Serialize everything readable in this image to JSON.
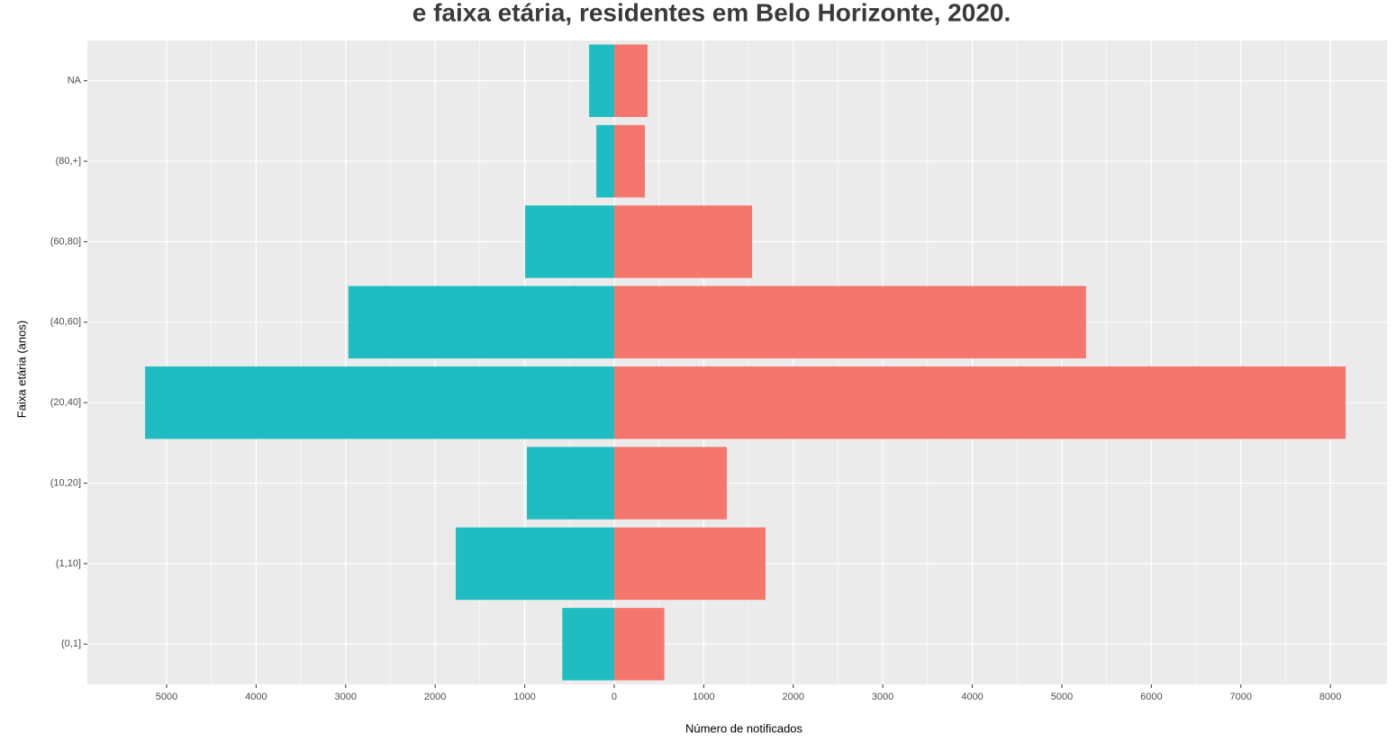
{
  "chart_data": {
    "type": "pyramid",
    "title": "e faixa etária, residentes em Belo Horizonte, 2020.",
    "xlabel": "Número de notificados",
    "ylabel": "Faixa etária (anos)",
    "categories": [
      "(0,1]",
      "(1,10]",
      "(10,20]",
      "(20,40]",
      "(40,60]",
      "(60,80]",
      "(80,+]",
      "NA"
    ],
    "series": [
      {
        "color": "#1fbdc1",
        "values": [
          -580,
          -1770,
          -975,
          -5240,
          -2970,
          -995,
          -200,
          -280
        ]
      },
      {
        "color": "#f4766d",
        "values": [
          560,
          1690,
          1258,
          8170,
          5270,
          1540,
          342,
          372
        ]
      }
    ],
    "xlim": [
      -5885,
      8632
    ],
    "xticks": [
      {
        "value": -5000,
        "label": "5000"
      },
      {
        "value": -4000,
        "label": "4000"
      },
      {
        "value": -3000,
        "label": "3000"
      },
      {
        "value": -2000,
        "label": "2000"
      },
      {
        "value": -1000,
        "label": "1000"
      },
      0,
      1000,
      2000,
      3000,
      4000,
      5000,
      6000,
      7000,
      8000
    ],
    "grid": true
  }
}
